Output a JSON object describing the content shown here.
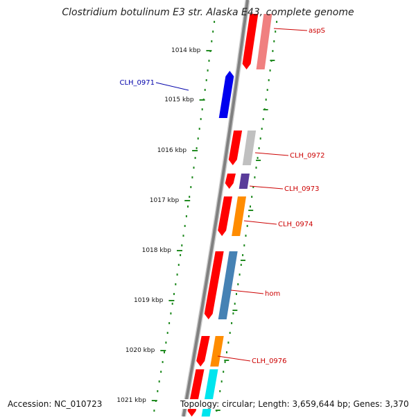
{
  "title": "Clostridium botulinum E3 str. Alaska E43, complete genome",
  "footer": {
    "accession": "Accession: NC_010723",
    "summary": "Topology: circular; Length: 3,659,644 bp; Genes: 3,370"
  },
  "axis": {
    "ticks": [
      "1014 kbp",
      "1015 kbp",
      "1016 kbp",
      "1017 kbp",
      "1018 kbp",
      "1019 kbp",
      "1020 kbp",
      "1021 kbp"
    ]
  },
  "genes": [
    {
      "label": "aspS",
      "label_color": "#cc0000",
      "cds_color": "#ff0000",
      "gene_color": "#f08080"
    },
    {
      "label": "CLH_0971",
      "label_color": "#0000aa",
      "cds_color": "#0000ee",
      "gene_color": ""
    },
    {
      "label": "CLH_0972",
      "label_color": "#cc0000",
      "cds_color": "#ff0000",
      "gene_color": "#c0c0c0"
    },
    {
      "label": "CLH_0973",
      "label_color": "#cc0000",
      "cds_color": "#ff0000",
      "gene_color": "#5a3d9a"
    },
    {
      "label": "CLH_0974",
      "label_color": "#cc0000",
      "cds_color": "#ff0000",
      "gene_color": "#ff8c00"
    },
    {
      "label": "hom",
      "label_color": "#cc0000",
      "cds_color": "#ff0000",
      "gene_color": "#4682b4"
    },
    {
      "label": "CLH_0976",
      "label_color": "#cc0000",
      "cds_color": "#ff0000",
      "gene_color": "#ff8c00"
    },
    {
      "label": "",
      "label_color": "",
      "cds_color": "#ff0000",
      "gene_color": "#00e5ee"
    }
  ],
  "colors": {
    "tick": "#228b22",
    "backbone": "#808080"
  }
}
